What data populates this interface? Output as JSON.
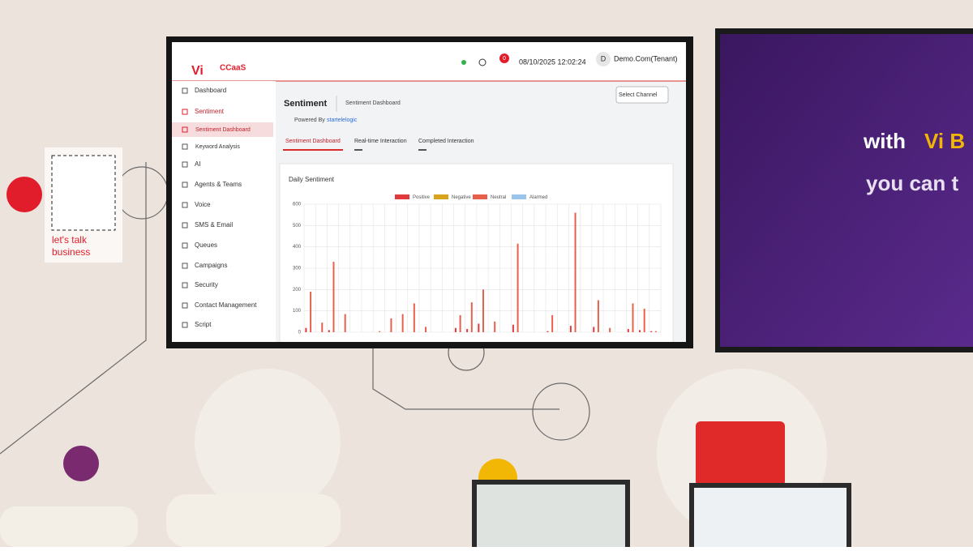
{
  "header": {
    "logo": "Vi",
    "product": "CCaaS",
    "notifications": "0",
    "datetime": "08/10/2025 12:02:24",
    "avatar": "D",
    "tenant": "Demo.Com(Tenant)"
  },
  "sidebar": {
    "items": [
      "Dashboard",
      "Sentiment",
      "Sentiment Dashboard",
      "Keyword Analysis",
      "AI",
      "Agents & Teams",
      "Voice",
      "SMS & Email",
      "Queues",
      "Campaigns",
      "Security",
      "Contact Management",
      "Script"
    ]
  },
  "page": {
    "title": "Sentiment",
    "breadcrumb": "Sentiment Dashboard",
    "powered_by": "Powered By",
    "vendor": "startelelogic",
    "channel_select": "Select Channel",
    "tabs": [
      "Sentiment Dashboard",
      "Real-time Interaction",
      "Completed Interaction"
    ]
  },
  "booth": {
    "poster_lines": [
      "let's talk",
      "business"
    ],
    "display_a": "with",
    "display_b": "Vi B",
    "display_c": "you can t"
  },
  "chart_data": {
    "type": "bar",
    "title": "Daily Sentiment",
    "categories": [
      null,
      null,
      null,
      null,
      null,
      null,
      null,
      null,
      null,
      null,
      null,
      null,
      null,
      null,
      null,
      null,
      null,
      null,
      null,
      null,
      null,
      null,
      null,
      null,
      null,
      null,
      null,
      null,
      null,
      null,
      null
    ],
    "series": [
      {
        "name": "Positive",
        "color": "#e03a3e",
        "values": [
          20,
          0,
          10,
          0,
          0,
          0,
          0,
          0,
          0,
          0,
          0,
          0,
          0,
          20,
          15,
          40,
          0,
          0,
          35,
          0,
          0,
          5,
          0,
          30,
          0,
          25,
          0,
          0,
          15,
          10,
          5
        ]
      },
      {
        "name": "Negative",
        "color": "#d8a31a",
        "values": [
          0,
          0,
          0,
          0,
          0,
          0,
          0,
          0,
          0,
          0,
          0,
          0,
          0,
          0,
          0,
          0,
          0,
          0,
          0,
          0,
          0,
          0,
          0,
          0,
          0,
          0,
          0,
          0,
          0,
          0,
          0
        ]
      },
      {
        "name": "Neutral",
        "color": "#e8604c",
        "values": [
          190,
          45,
          330,
          85,
          0,
          0,
          5,
          65,
          85,
          135,
          25,
          0,
          0,
          80,
          140,
          200,
          50,
          0,
          415,
          0,
          0,
          80,
          0,
          560,
          0,
          150,
          20,
          0,
          135,
          110,
          5
        ]
      },
      {
        "name": "Alarmed",
        "color": "#9cc3ea",
        "values": [
          0,
          0,
          0,
          0,
          0,
          0,
          0,
          0,
          0,
          0,
          0,
          0,
          0,
          0,
          0,
          0,
          0,
          0,
          0,
          0,
          0,
          0,
          0,
          0,
          0,
          0,
          0,
          0,
          0,
          0,
          0
        ]
      }
    ],
    "ylim": [
      0,
      600
    ],
    "yticks": [
      0,
      100,
      200,
      300,
      400,
      500,
      600
    ],
    "grid": true,
    "legend": "top"
  }
}
